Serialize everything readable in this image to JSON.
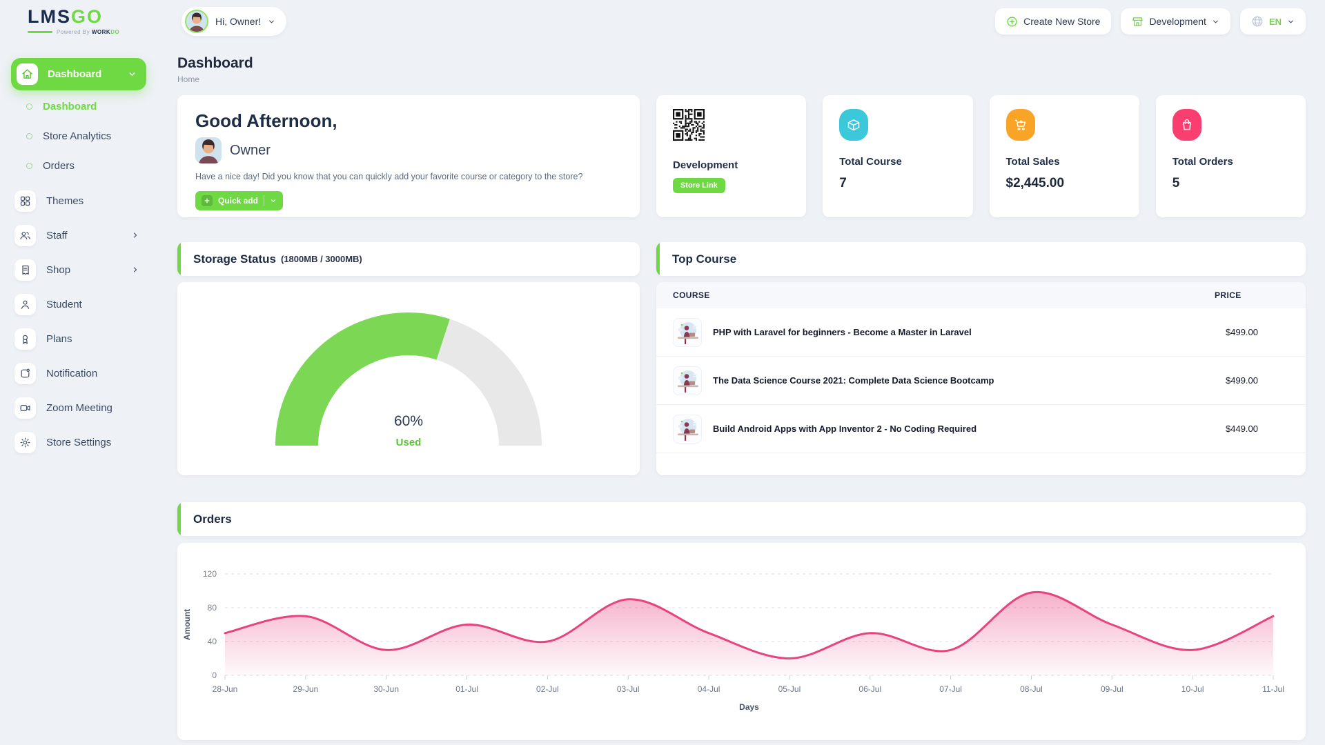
{
  "brand": {
    "lms": "LMS",
    "go": "GO",
    "powered_by": "Powered By",
    "workdo_work": "WORK",
    "workdo_do": "DO"
  },
  "topbar": {
    "greeting_pill": "Hi, Owner!",
    "create_new_store": "Create New Store",
    "store_switcher": "Development",
    "language": "EN",
    "icons": [
      "plus-circle-icon",
      "storefront-icon",
      "globe-icon",
      "chevron-down-icon"
    ]
  },
  "sidebar": {
    "active": {
      "label": "Dashboard",
      "icon": "home-icon"
    },
    "sub_items": [
      {
        "label": "Dashboard",
        "active": true
      },
      {
        "label": "Store Analytics",
        "active": false
      },
      {
        "label": "Orders",
        "active": false
      }
    ],
    "menu_items": [
      {
        "label": "Themes",
        "icon": "grid-icon",
        "chevron": false
      },
      {
        "label": "Staff",
        "icon": "users-icon",
        "chevron": true
      },
      {
        "label": "Shop",
        "icon": "receipt-icon",
        "chevron": true
      },
      {
        "label": "Student",
        "icon": "person-icon",
        "chevron": false
      },
      {
        "label": "Plans",
        "icon": "award-icon",
        "chevron": false
      },
      {
        "label": "Notification",
        "icon": "notification-icon",
        "chevron": false
      },
      {
        "label": "Zoom Meeting",
        "icon": "video-icon",
        "chevron": false
      },
      {
        "label": "Store Settings",
        "icon": "gear-icon",
        "chevron": false
      }
    ]
  },
  "page": {
    "title": "Dashboard",
    "breadcrumb": "Home"
  },
  "greeting": {
    "title": "Good Afternoon,",
    "name": "Owner",
    "message": "Have a nice day! Did you know that you can quickly add your favorite course or category to the store?",
    "quick_add_label": "Quick add"
  },
  "stats": {
    "development": {
      "label": "Development",
      "badge": "Store Link",
      "icon": "qr-code"
    },
    "total_course": {
      "label": "Total Course",
      "value": "7",
      "icon": "package-icon",
      "color": "#3bc8da"
    },
    "total_sales": {
      "label": "Total Sales",
      "value": "$2,445.00",
      "icon": "cart-icon",
      "color": "#f9a427"
    },
    "total_orders": {
      "label": "Total Orders",
      "value": "5",
      "icon": "bag-icon",
      "color": "#fb3e70"
    }
  },
  "storage": {
    "title": "Storage Status",
    "subtitle": "(1800MB / 3000MB)",
    "percent_label": "60%",
    "used_label": "Used"
  },
  "top_course": {
    "title": "Top Course",
    "columns": [
      "COURSE",
      "PRICE"
    ],
    "rows": [
      {
        "title": "PHP with Laravel for beginners - Become a Master in Laravel",
        "price": "$499.00"
      },
      {
        "title": "The Data Science Course 2021: Complete Data Science Bootcamp",
        "price": "$499.00"
      },
      {
        "title": "Build Android Apps with App Inventor 2 - No Coding Required",
        "price": "$449.00"
      }
    ]
  },
  "orders": {
    "title": "Orders"
  },
  "colors": {
    "brand_green": "#6fd943",
    "gauge_green": "#7cd854",
    "gauge_track": "#e8e8e8",
    "chart_pink": "#e8437f",
    "card_bg": "#ffffff",
    "page_bg": "#eef1f6"
  },
  "chart_data": [
    {
      "type": "gauge",
      "title": "Storage Status (1800MB / 3000MB)",
      "percent": 60,
      "center_label": "60%",
      "sub_label": "Used",
      "used_mb": 1800,
      "total_mb": 3000
    },
    {
      "type": "area",
      "title": "Orders",
      "categories": [
        "28-Jun",
        "29-Jun",
        "30-Jun",
        "01-Jul",
        "02-Jul",
        "03-Jul",
        "04-Jul",
        "05-Jul",
        "06-Jul",
        "07-Jul",
        "08-Jul",
        "09-Jul",
        "10-Jul",
        "11-Jul"
      ],
      "values": [
        50,
        70,
        30,
        60,
        40,
        90,
        50,
        20,
        50,
        30,
        98,
        60,
        30,
        70
      ],
      "xlabel": "Days",
      "ylabel": "Amount",
      "ylim": [
        0,
        120
      ],
      "yticks": [
        0,
        40,
        80,
        120
      ],
      "grid": "dashed-horizontal",
      "legend": "none"
    }
  ]
}
